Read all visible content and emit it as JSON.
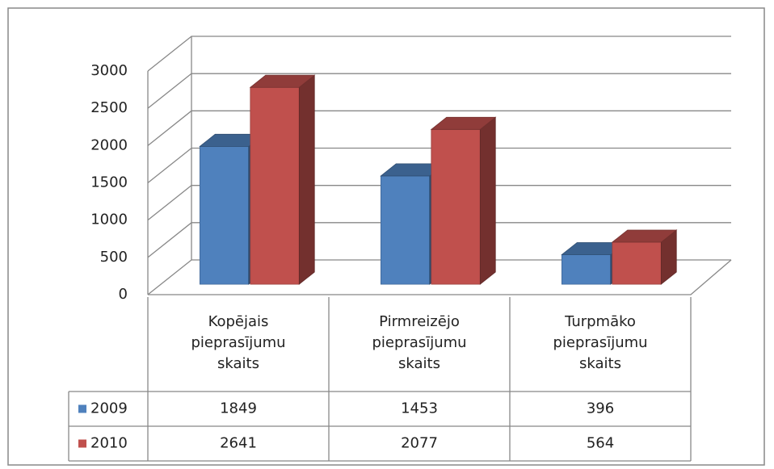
{
  "chart_data": {
    "type": "bar3d",
    "categories": [
      "Kopējais pieprasījumu skaits",
      "Pirmreizējo pieprasījumu skaits",
      "Turpmāko pieprasījumu skaits"
    ],
    "series": [
      {
        "name": "2009",
        "color": "#4f81bd",
        "values": [
          1849,
          1453,
          396
        ]
      },
      {
        "name": "2010",
        "color": "#c0504d",
        "values": [
          2641,
          2077,
          564
        ]
      }
    ],
    "ylim": [
      0,
      3000
    ],
    "yticks": [
      0,
      500,
      1000,
      1500,
      2000,
      2500,
      3000
    ],
    "grid": true
  }
}
